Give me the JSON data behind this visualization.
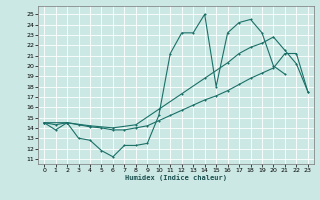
{
  "bg_color": "#cce8e4",
  "grid_color": "#aacfcc",
  "line_color": "#1a7068",
  "xlabel": "Humidex (Indice chaleur)",
  "xlim": [
    -0.5,
    23.5
  ],
  "ylim": [
    10.5,
    25.8
  ],
  "xticks": [
    0,
    1,
    2,
    3,
    4,
    5,
    6,
    7,
    8,
    9,
    10,
    11,
    12,
    13,
    14,
    15,
    16,
    17,
    18,
    19,
    20,
    21,
    22,
    23
  ],
  "yticks": [
    11,
    12,
    13,
    14,
    15,
    16,
    17,
    18,
    19,
    20,
    21,
    22,
    23,
    24,
    25
  ],
  "line1_x": [
    0,
    1,
    2,
    3,
    4,
    5,
    6,
    7,
    8,
    9,
    10,
    11,
    12,
    13,
    14,
    15,
    16,
    17,
    18,
    19,
    20,
    21
  ],
  "line1_y": [
    14.5,
    13.8,
    14.5,
    13.0,
    12.8,
    11.8,
    11.2,
    12.3,
    12.3,
    12.5,
    15.2,
    21.2,
    23.2,
    23.2,
    25.0,
    18.0,
    23.2,
    24.2,
    24.5,
    23.2,
    20.0,
    19.2
  ],
  "line2_x": [
    0,
    1,
    2,
    3,
    4,
    5,
    6,
    7,
    8,
    9,
    10,
    11,
    12,
    13,
    14,
    15,
    16,
    17,
    18,
    19,
    20,
    21,
    22,
    23
  ],
  "line2_y": [
    14.5,
    14.3,
    14.5,
    14.3,
    14.1,
    14.0,
    13.8,
    13.8,
    14.0,
    14.2,
    14.7,
    15.2,
    15.7,
    16.2,
    16.7,
    17.1,
    17.6,
    18.2,
    18.8,
    19.3,
    19.8,
    21.2,
    21.2,
    17.5
  ],
  "line3_x": [
    0,
    2,
    4,
    6,
    8,
    10,
    12,
    14,
    16,
    17,
    18,
    19,
    20,
    21,
    22,
    23
  ],
  "line3_y": [
    14.5,
    14.5,
    14.2,
    14.0,
    14.3,
    15.8,
    17.3,
    18.8,
    20.3,
    21.2,
    21.8,
    22.2,
    22.8,
    21.5,
    20.2,
    17.5
  ]
}
